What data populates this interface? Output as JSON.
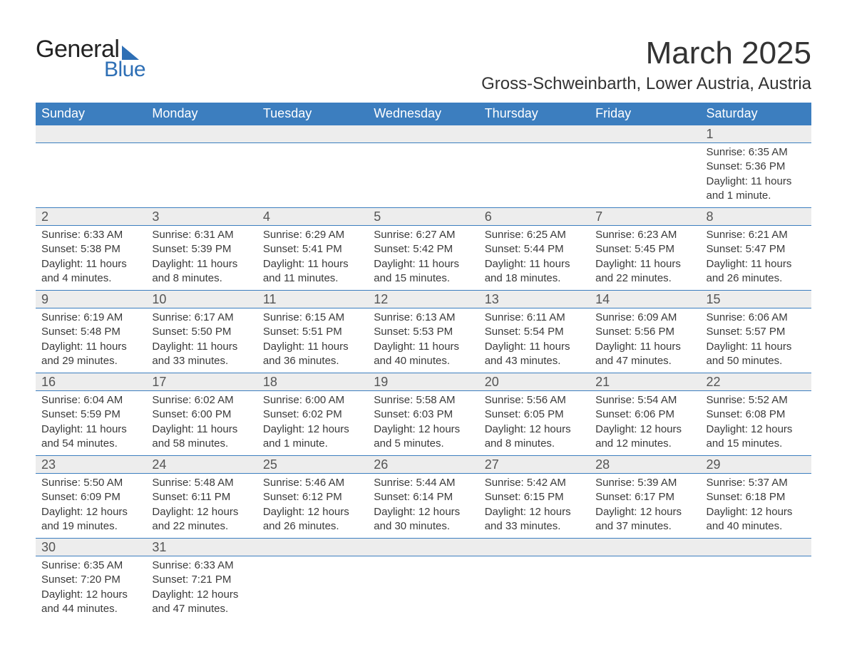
{
  "logo": {
    "text_general": "General",
    "text_blue": "Blue",
    "accent_color": "#2e6fb5"
  },
  "header": {
    "month_title": "March 2025",
    "location": "Gross-Schweinbarth, Lower Austria, Austria"
  },
  "calendar": {
    "header_bg": "#3c7ebf",
    "header_fg": "#ffffff",
    "daybar_bg": "#ededed",
    "daybar_border": "#3c7ebf",
    "text_color": "#3a3a3a",
    "font_family": "Arial",
    "header_font_size_pt": 14,
    "daynum_font_size_pt": 14,
    "body_font_size_pt": 11,
    "day_names": [
      "Sunday",
      "Monday",
      "Tuesday",
      "Wednesday",
      "Thursday",
      "Friday",
      "Saturday"
    ],
    "weeks": [
      [
        null,
        null,
        null,
        null,
        null,
        null,
        {
          "n": "1",
          "sunrise": "Sunrise: 6:35 AM",
          "sunset": "Sunset: 5:36 PM",
          "day1": "Daylight: 11 hours",
          "day2": "and 1 minute."
        }
      ],
      [
        {
          "n": "2",
          "sunrise": "Sunrise: 6:33 AM",
          "sunset": "Sunset: 5:38 PM",
          "day1": "Daylight: 11 hours",
          "day2": "and 4 minutes."
        },
        {
          "n": "3",
          "sunrise": "Sunrise: 6:31 AM",
          "sunset": "Sunset: 5:39 PM",
          "day1": "Daylight: 11 hours",
          "day2": "and 8 minutes."
        },
        {
          "n": "4",
          "sunrise": "Sunrise: 6:29 AM",
          "sunset": "Sunset: 5:41 PM",
          "day1": "Daylight: 11 hours",
          "day2": "and 11 minutes."
        },
        {
          "n": "5",
          "sunrise": "Sunrise: 6:27 AM",
          "sunset": "Sunset: 5:42 PM",
          "day1": "Daylight: 11 hours",
          "day2": "and 15 minutes."
        },
        {
          "n": "6",
          "sunrise": "Sunrise: 6:25 AM",
          "sunset": "Sunset: 5:44 PM",
          "day1": "Daylight: 11 hours",
          "day2": "and 18 minutes."
        },
        {
          "n": "7",
          "sunrise": "Sunrise: 6:23 AM",
          "sunset": "Sunset: 5:45 PM",
          "day1": "Daylight: 11 hours",
          "day2": "and 22 minutes."
        },
        {
          "n": "8",
          "sunrise": "Sunrise: 6:21 AM",
          "sunset": "Sunset: 5:47 PM",
          "day1": "Daylight: 11 hours",
          "day2": "and 26 minutes."
        }
      ],
      [
        {
          "n": "9",
          "sunrise": "Sunrise: 6:19 AM",
          "sunset": "Sunset: 5:48 PM",
          "day1": "Daylight: 11 hours",
          "day2": "and 29 minutes."
        },
        {
          "n": "10",
          "sunrise": "Sunrise: 6:17 AM",
          "sunset": "Sunset: 5:50 PM",
          "day1": "Daylight: 11 hours",
          "day2": "and 33 minutes."
        },
        {
          "n": "11",
          "sunrise": "Sunrise: 6:15 AM",
          "sunset": "Sunset: 5:51 PM",
          "day1": "Daylight: 11 hours",
          "day2": "and 36 minutes."
        },
        {
          "n": "12",
          "sunrise": "Sunrise: 6:13 AM",
          "sunset": "Sunset: 5:53 PM",
          "day1": "Daylight: 11 hours",
          "day2": "and 40 minutes."
        },
        {
          "n": "13",
          "sunrise": "Sunrise: 6:11 AM",
          "sunset": "Sunset: 5:54 PM",
          "day1": "Daylight: 11 hours",
          "day2": "and 43 minutes."
        },
        {
          "n": "14",
          "sunrise": "Sunrise: 6:09 AM",
          "sunset": "Sunset: 5:56 PM",
          "day1": "Daylight: 11 hours",
          "day2": "and 47 minutes."
        },
        {
          "n": "15",
          "sunrise": "Sunrise: 6:06 AM",
          "sunset": "Sunset: 5:57 PM",
          "day1": "Daylight: 11 hours",
          "day2": "and 50 minutes."
        }
      ],
      [
        {
          "n": "16",
          "sunrise": "Sunrise: 6:04 AM",
          "sunset": "Sunset: 5:59 PM",
          "day1": "Daylight: 11 hours",
          "day2": "and 54 minutes."
        },
        {
          "n": "17",
          "sunrise": "Sunrise: 6:02 AM",
          "sunset": "Sunset: 6:00 PM",
          "day1": "Daylight: 11 hours",
          "day2": "and 58 minutes."
        },
        {
          "n": "18",
          "sunrise": "Sunrise: 6:00 AM",
          "sunset": "Sunset: 6:02 PM",
          "day1": "Daylight: 12 hours",
          "day2": "and 1 minute."
        },
        {
          "n": "19",
          "sunrise": "Sunrise: 5:58 AM",
          "sunset": "Sunset: 6:03 PM",
          "day1": "Daylight: 12 hours",
          "day2": "and 5 minutes."
        },
        {
          "n": "20",
          "sunrise": "Sunrise: 5:56 AM",
          "sunset": "Sunset: 6:05 PM",
          "day1": "Daylight: 12 hours",
          "day2": "and 8 minutes."
        },
        {
          "n": "21",
          "sunrise": "Sunrise: 5:54 AM",
          "sunset": "Sunset: 6:06 PM",
          "day1": "Daylight: 12 hours",
          "day2": "and 12 minutes."
        },
        {
          "n": "22",
          "sunrise": "Sunrise: 5:52 AM",
          "sunset": "Sunset: 6:08 PM",
          "day1": "Daylight: 12 hours",
          "day2": "and 15 minutes."
        }
      ],
      [
        {
          "n": "23",
          "sunrise": "Sunrise: 5:50 AM",
          "sunset": "Sunset: 6:09 PM",
          "day1": "Daylight: 12 hours",
          "day2": "and 19 minutes."
        },
        {
          "n": "24",
          "sunrise": "Sunrise: 5:48 AM",
          "sunset": "Sunset: 6:11 PM",
          "day1": "Daylight: 12 hours",
          "day2": "and 22 minutes."
        },
        {
          "n": "25",
          "sunrise": "Sunrise: 5:46 AM",
          "sunset": "Sunset: 6:12 PM",
          "day1": "Daylight: 12 hours",
          "day2": "and 26 minutes."
        },
        {
          "n": "26",
          "sunrise": "Sunrise: 5:44 AM",
          "sunset": "Sunset: 6:14 PM",
          "day1": "Daylight: 12 hours",
          "day2": "and 30 minutes."
        },
        {
          "n": "27",
          "sunrise": "Sunrise: 5:42 AM",
          "sunset": "Sunset: 6:15 PM",
          "day1": "Daylight: 12 hours",
          "day2": "and 33 minutes."
        },
        {
          "n": "28",
          "sunrise": "Sunrise: 5:39 AM",
          "sunset": "Sunset: 6:17 PM",
          "day1": "Daylight: 12 hours",
          "day2": "and 37 minutes."
        },
        {
          "n": "29",
          "sunrise": "Sunrise: 5:37 AM",
          "sunset": "Sunset: 6:18 PM",
          "day1": "Daylight: 12 hours",
          "day2": "and 40 minutes."
        }
      ],
      [
        {
          "n": "30",
          "sunrise": "Sunrise: 6:35 AM",
          "sunset": "Sunset: 7:20 PM",
          "day1": "Daylight: 12 hours",
          "day2": "and 44 minutes."
        },
        {
          "n": "31",
          "sunrise": "Sunrise: 6:33 AM",
          "sunset": "Sunset: 7:21 PM",
          "day1": "Daylight: 12 hours",
          "day2": "and 47 minutes."
        },
        null,
        null,
        null,
        null,
        null
      ]
    ]
  }
}
